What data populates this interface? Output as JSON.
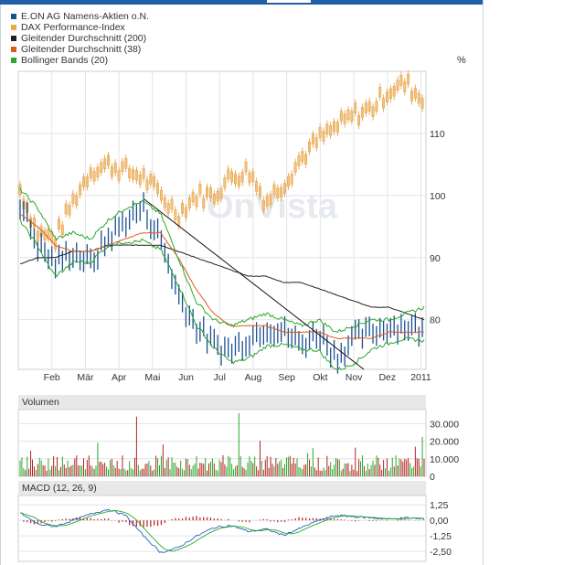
{
  "legend": [
    {
      "label": "E.ON AG Namens-Aktien o.N.",
      "color": "#1a4f91"
    },
    {
      "label": "DAX Performance-Index",
      "color": "#f0a850"
    },
    {
      "label": "Gleitender Durchschnitt (200)",
      "color": "#222222"
    },
    {
      "label": "Gleitender Durchschnitt (38)",
      "color": "#e05a1a"
    },
    {
      "label": "Bollinger Bands (20)",
      "color": "#2aa82a"
    }
  ],
  "watermark": "OnVista",
  "chart_data": [
    {
      "type": "line",
      "panel": "price",
      "ylabel": "%",
      "x_labels": [
        "Feb",
        "Mär",
        "Apr",
        "Mai",
        "Jun",
        "Jul",
        "Aug",
        "Sep",
        "Okt",
        "Nov",
        "Dez",
        "2011"
      ],
      "y_ticks": [
        80,
        90,
        100,
        110
      ],
      "ylim": [
        72,
        120
      ],
      "series": [
        {
          "name": "E.ON AG Namens-Aktien o.N.",
          "values": [
            99,
            92,
            89,
            91,
            89,
            93,
            96,
            98,
            93,
            84,
            79,
            76,
            75,
            77,
            79,
            78,
            76,
            78,
            74,
            77,
            78,
            79,
            79,
            78
          ]
        },
        {
          "name": "DAX Performance-Index",
          "values": [
            101,
            94,
            93,
            99,
            104,
            105,
            104,
            103,
            100,
            97,
            100,
            100,
            103,
            104,
            99,
            102,
            106,
            109,
            111,
            113,
            114,
            117,
            118,
            115
          ]
        },
        {
          "name": "Gleitender Durchschnitt (200)",
          "values": [
            89,
            90,
            90,
            91,
            91,
            92,
            92,
            92,
            92,
            91,
            90,
            89,
            88,
            87,
            87,
            86,
            86,
            85,
            84,
            83,
            82,
            82,
            81,
            80
          ]
        },
        {
          "name": "Gleitender Durchschnitt (38)",
          "values": [
            97,
            95,
            92,
            91,
            91,
            92,
            93,
            94,
            94,
            90,
            85,
            81,
            79,
            79,
            79,
            78,
            78,
            78,
            77,
            77,
            77,
            78,
            78,
            78
          ]
        },
        {
          "name": "Bollinger Bands (20)",
          "values": [
            101,
            98,
            93,
            94,
            93,
            96,
            98,
            99,
            97,
            90,
            83,
            80,
            79,
            80,
            81,
            80,
            79,
            80,
            78,
            79,
            80,
            80,
            81,
            82
          ]
        }
      ]
    },
    {
      "type": "bar",
      "panel": "volume",
      "title": "Volumen",
      "y_ticks": [
        "30.000",
        "20.000",
        "10.000",
        "0"
      ],
      "ylim": [
        0,
        38000
      ]
    },
    {
      "type": "line",
      "panel": "macd",
      "title": "MACD (12, 26, 9)",
      "y_ticks": [
        "1,25",
        "0,00",
        "-1,25",
        "-2,50"
      ],
      "ylim": [
        -3.3,
        2.0
      ]
    }
  ]
}
